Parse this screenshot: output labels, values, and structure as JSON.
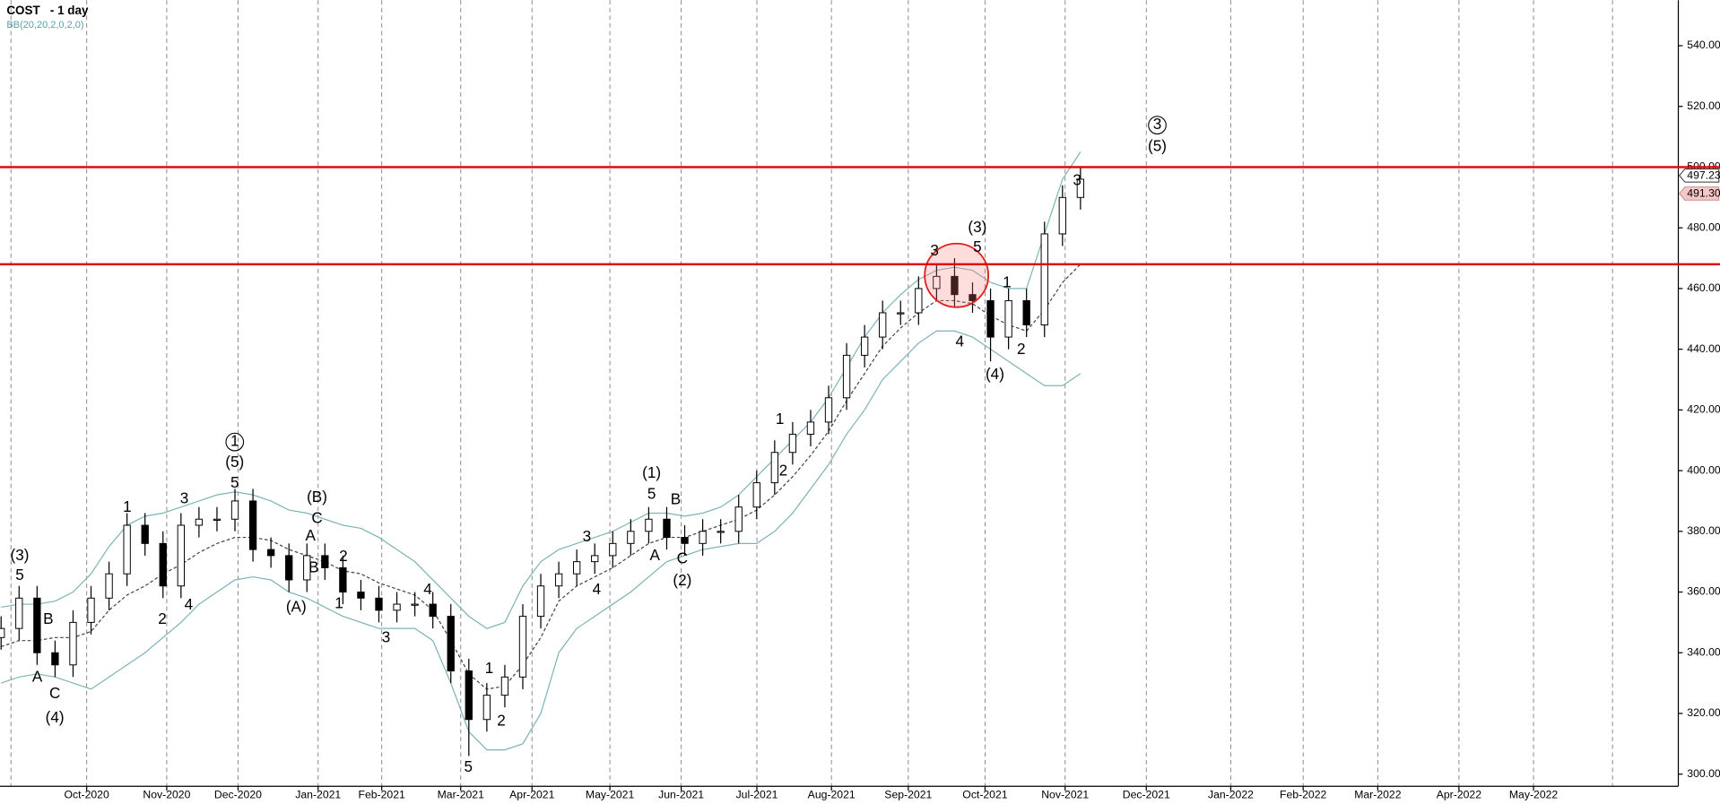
{
  "chart_data": {
    "type": "candlestick",
    "title": "COST   - 1 day",
    "indicator": "BB(20,20,2,0,2,0)",
    "ylim": [
      296,
      555
    ],
    "yticks": [
      {
        "value": 300,
        "label": "300.00"
      },
      {
        "value": 320,
        "label": "320.00"
      },
      {
        "value": 340,
        "label": "340.00"
      },
      {
        "value": 360,
        "label": "360.00"
      },
      {
        "value": 380,
        "label": "380.00"
      },
      {
        "value": 400,
        "label": "400.00"
      },
      {
        "value": 420,
        "label": "420.00"
      },
      {
        "value": 440,
        "label": "440.00"
      },
      {
        "value": 460,
        "label": "460.00"
      },
      {
        "value": 480,
        "label": "480.00"
      },
      {
        "value": 500,
        "label": "500.00"
      },
      {
        "value": 520,
        "label": "520.00"
      },
      {
        "value": 540,
        "label": "540.00"
      }
    ],
    "xticks": [
      "Oct-2020",
      "Nov-2020",
      "Dec-2020",
      "Jan-2021",
      "Feb-2021",
      "Mar-2021",
      "Apr-2021",
      "May-2021",
      "Jun-2021",
      "Jul-2021",
      "Aug-2021",
      "Sep-2021",
      "Oct-2021",
      "Nov-2021",
      "Dec-2021",
      "Jan-2022",
      "Feb-2022",
      "Mar-2022",
      "Apr-2022",
      "May-2022"
    ],
    "grid": true,
    "candles": {
      "open": [
        345,
        348,
        358,
        340,
        336,
        350,
        358,
        366,
        382,
        376,
        362,
        382,
        384,
        384,
        390,
        374,
        372,
        364,
        372,
        368,
        360,
        358,
        354,
        356,
        356,
        352,
        334,
        318,
        326,
        332,
        352,
        362,
        366,
        370,
        372,
        376,
        380,
        384,
        378,
        376,
        380,
        380,
        388,
        396,
        406,
        412,
        416,
        424,
        438,
        444,
        452,
        452,
        460,
        464,
        458,
        456,
        444,
        456,
        448,
        478,
        490
      ],
      "high": [
        352,
        362,
        362,
        344,
        354,
        362,
        370,
        386,
        386,
        380,
        386,
        388,
        388,
        394,
        394,
        378,
        376,
        376,
        376,
        372,
        364,
        362,
        360,
        360,
        360,
        356,
        338,
        330,
        336,
        356,
        366,
        370,
        374,
        376,
        380,
        384,
        388,
        388,
        382,
        384,
        384,
        392,
        400,
        410,
        416,
        420,
        428,
        442,
        448,
        456,
        456,
        464,
        468,
        470,
        462,
        460,
        460,
        460,
        482,
        494,
        500
      ],
      "low": [
        341,
        344,
        336,
        332,
        332,
        346,
        354,
        362,
        372,
        358,
        358,
        378,
        380,
        380,
        370,
        368,
        360,
        360,
        364,
        356,
        354,
        350,
        350,
        352,
        348,
        330,
        306,
        314,
        322,
        328,
        348,
        358,
        362,
        366,
        368,
        372,
        376,
        374,
        372,
        372,
        376,
        376,
        384,
        392,
        402,
        408,
        412,
        420,
        434,
        440,
        448,
        448,
        456,
        454,
        452,
        436,
        440,
        444,
        444,
        474,
        486
      ],
      "close": [
        348,
        358,
        340,
        336,
        350,
        358,
        366,
        382,
        376,
        362,
        382,
        384,
        384,
        390,
        374,
        372,
        364,
        372,
        368,
        360,
        358,
        354,
        356,
        356,
        352,
        334,
        318,
        326,
        332,
        352,
        362,
        366,
        370,
        372,
        376,
        380,
        384,
        378,
        376,
        380,
        380,
        388,
        396,
        406,
        412,
        416,
        424,
        438,
        444,
        452,
        452,
        460,
        464,
        458,
        456,
        444,
        456,
        448,
        478,
        490,
        496
      ]
    },
    "series": [
      {
        "name": "upper",
        "color": "#7fb3b8",
        "values": [
          355,
          356,
          356,
          357,
          360,
          366,
          375,
          382,
          385,
          386,
          388,
          390,
          392,
          393,
          392,
          390,
          387,
          386,
          384,
          382,
          381,
          378,
          374,
          370,
          364,
          358,
          352,
          348,
          350,
          362,
          370,
          374,
          376,
          378,
          380,
          383,
          386,
          386,
          385,
          386,
          388,
          392,
          398,
          404,
          410,
          416,
          424,
          434,
          444,
          452,
          458,
          463,
          466,
          467,
          466,
          462,
          460,
          460,
          478,
          496,
          505
        ]
      },
      {
        "name": "middle",
        "color": "#444444",
        "values": [
          342,
          344,
          344,
          345,
          345,
          347,
          354,
          359,
          362,
          366,
          369,
          373,
          376,
          378,
          378,
          377,
          374,
          372,
          370,
          367,
          366,
          363,
          361,
          359,
          354,
          344,
          333,
          328,
          329,
          336,
          345,
          357,
          362,
          365,
          368,
          372,
          376,
          378,
          378,
          380,
          382,
          384,
          387,
          392,
          398,
          405,
          413,
          423,
          432,
          441,
          447,
          452,
          456,
          456,
          455,
          451,
          448,
          446,
          453,
          462,
          468
        ]
      },
      {
        "name": "lower",
        "color": "#7fb3b8",
        "values": [
          330,
          332,
          333,
          332,
          330,
          328,
          332,
          336,
          340,
          345,
          350,
          356,
          360,
          364,
          365,
          364,
          360,
          358,
          355,
          352,
          350,
          348,
          348,
          348,
          344,
          330,
          314,
          308,
          308,
          310,
          320,
          340,
          348,
          352,
          356,
          360,
          365,
          370,
          372,
          374,
          375,
          376,
          376,
          380,
          386,
          394,
          402,
          412,
          420,
          430,
          436,
          442,
          446,
          446,
          444,
          440,
          436,
          432,
          428,
          428,
          432
        ]
      }
    ],
    "levels": [
      500,
      468
    ],
    "price_tags": [
      {
        "value": 497.23,
        "label": "497.23"
      },
      {
        "value": 491.3,
        "label": "491.30"
      }
    ],
    "annotations": [
      "(3)",
      "5",
      "B",
      "A",
      "C",
      "(4)",
      "1",
      "2",
      "3",
      "4",
      "1",
      "(5)",
      "5",
      "(B)",
      "C",
      "A",
      "B",
      "(A)",
      "2",
      "1",
      "3",
      "4",
      "1",
      "2",
      "5",
      "3",
      "4",
      "(1)",
      "5",
      "B",
      "A",
      "C",
      "(2)",
      "1",
      "2",
      "3",
      "(3)",
      "5",
      "4",
      "1",
      "2",
      "(4)",
      "3",
      "3",
      "(5)"
    ]
  }
}
